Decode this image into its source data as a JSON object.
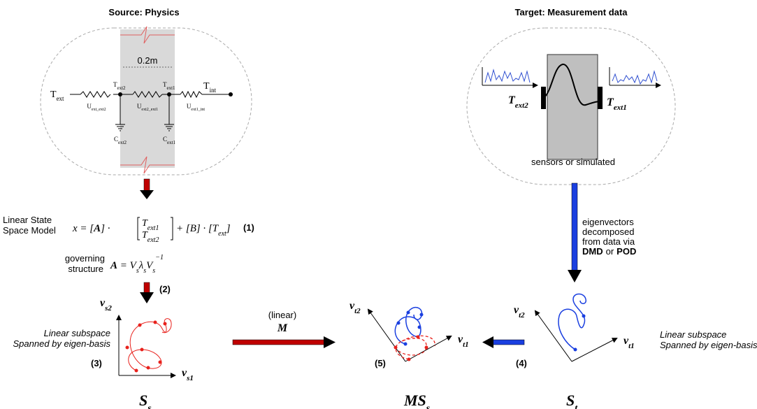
{
  "source": {
    "title": "Source: Physics",
    "dimension": "0.2m",
    "nodes": [
      {
        "base": "T",
        "sub": "ext"
      },
      {
        "base": "T",
        "sub": "ext2"
      },
      {
        "base": "T",
        "sub": "ext1"
      },
      {
        "base": "T",
        "sub": "int"
      }
    ],
    "resistors": [
      {
        "base": "U",
        "sub": "ext_ext2"
      },
      {
        "base": "U",
        "sub": "ext2_ext1"
      },
      {
        "base": "U",
        "sub": "ext1_int"
      }
    ],
    "capacitors": [
      {
        "base": "C",
        "sub": "ext2"
      },
      {
        "base": "C",
        "sub": "ext1"
      }
    ]
  },
  "model": {
    "label": [
      "Linear State",
      "Space Model"
    ],
    "equation": {
      "lhs": "x = [",
      "matrix_a": "A",
      "op1": "] ·",
      "states": [
        {
          "base": "T",
          "sub": "ext1"
        },
        {
          "base": "T",
          "sub": "ext2"
        }
      ],
      "op2": "+ [B] · [",
      "input": {
        "base": "T",
        "sub": "ext"
      },
      "close": "]"
    },
    "number": "(1)"
  },
  "governing": {
    "label": [
      "governing",
      "structure"
    ],
    "equation": [
      {
        "base": "A"
      },
      {
        "base": " = V",
        "sub": "s"
      },
      {
        "base": "λ",
        "sub": "s"
      },
      {
        "base": "V",
        "sub": "s",
        "sup": "−1"
      }
    ]
  },
  "steps": [
    "(2)",
    "(3)",
    "(4)",
    "(5)"
  ],
  "source_space": {
    "axes": [
      {
        "base": "v",
        "sub": "s2"
      },
      {
        "base": "v",
        "sub": "s1"
      }
    ],
    "note": [
      "Linear subspace",
      "Spanned by eigen-basis"
    ],
    "symbol": {
      "base": "S",
      "sub": "s"
    }
  },
  "mapping": {
    "label": "(linear)",
    "operator": "M",
    "axes": [
      {
        "base": "v",
        "sub": "t2"
      },
      {
        "base": "v",
        "sub": "t1"
      }
    ],
    "symbol": {
      "base": "MS",
      "sub": "s"
    }
  },
  "target": {
    "title": "Target: Measurement data",
    "sensors": [
      {
        "base": "T",
        "sub": "ext2"
      },
      {
        "base": "T",
        "sub": "ext1"
      }
    ],
    "caption": "sensors or simulated",
    "decomposition": [
      "eigenvectors",
      "decomposed",
      "from data via"
    ],
    "methods": [
      "DMD",
      "or",
      "POD"
    ]
  },
  "target_space": {
    "axes": [
      {
        "base": "v",
        "sub": "t2"
      },
      {
        "base": "v",
        "sub": "t1"
      }
    ],
    "note": [
      "Linear subspace",
      "Spanned by eigen-basis"
    ],
    "symbol": {
      "base": "S",
      "sub": "t"
    }
  }
}
